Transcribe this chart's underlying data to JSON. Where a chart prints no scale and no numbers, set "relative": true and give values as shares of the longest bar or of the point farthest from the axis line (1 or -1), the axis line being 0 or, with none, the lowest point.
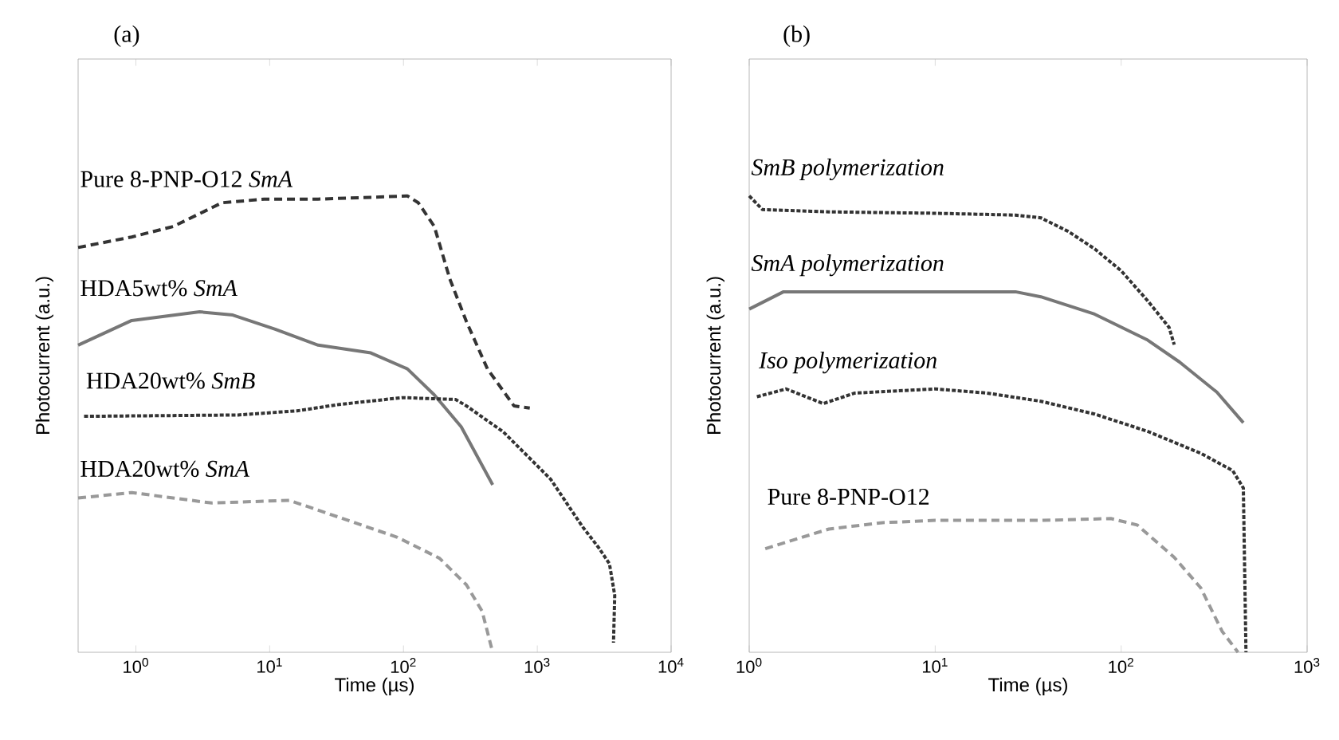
{
  "chart_data": [
    {
      "type": "line",
      "title": "(a)",
      "xlabel": "Time (µs)",
      "ylabel": "Photocurrent (a.u.)",
      "log": "x",
      "relative": true,
      "marker": "none",
      "xlim": [
        0.37,
        10000
      ],
      "xticks": [
        {
          "value": 1,
          "label": "10$^{0}$"
        },
        {
          "value": 10,
          "label": "10$^{1}$"
        },
        {
          "value": 100,
          "label": "10$^{2}$"
        },
        {
          "value": 1000,
          "label": "10$^{3}$"
        },
        {
          "value": 10000,
          "label": "10$^{4}$"
        }
      ],
      "series": [
        {
          "name": "Pure 8-PNP-O12 *SmA*",
          "color": "#333333",
          "line_style": "dashed",
          "x": [
            0.37,
            0.93,
            1.9,
            4.4,
            9.1,
            23,
            57,
            107,
            129,
            170,
            222,
            295,
            424,
            669,
            879
          ],
          "values": [
            0.887,
            0.91,
            0.933,
            0.985,
            0.993,
            0.993,
            0.997,
            1.0,
            0.985,
            0.933,
            0.818,
            0.725,
            0.621,
            0.54,
            0.535
          ]
        },
        {
          "name": "HDA5wt%  *SmA*",
          "color": "#777777",
          "line_style": "solid",
          "x": [
            0.37,
            0.93,
            3.0,
            5.3,
            11,
            23,
            57,
            107,
            170,
            270,
            464
          ],
          "values": [
            0.673,
            0.727,
            0.746,
            0.739,
            0.708,
            0.673,
            0.656,
            0.621,
            0.564,
            0.494,
            0.367
          ]
        },
        {
          "name": "HDA20wt%  *SmB*",
          "color": "#333333",
          "line_style": "dotted",
          "x": [
            0.41,
            5.8,
            16,
            33,
            98,
            245,
            295,
            557,
            879,
            1260,
            1820,
            2180,
            2880,
            3460,
            3790,
            3710
          ],
          "values": [
            0.517,
            0.52,
            0.529,
            0.543,
            0.558,
            0.554,
            0.54,
            0.483,
            0.425,
            0.379,
            0.309,
            0.275,
            0.229,
            0.194,
            0.125,
            0.021
          ]
        },
        {
          "name": "HDA20wt%  *SmA*",
          "color": "#999999",
          "line_style": "dashed",
          "x": [
            0.37,
            0.93,
            3.7,
            14,
            36,
            90,
            186,
            295,
            387,
            464
          ],
          "values": [
            0.338,
            0.35,
            0.327,
            0.333,
            0.292,
            0.252,
            0.206,
            0.148,
            0.09,
            0
          ]
        }
      ]
    },
    {
      "type": "line",
      "title": "(b)",
      "xlabel": "Time (µs)",
      "ylabel": "Photocurrent (a.u.)",
      "log": "x",
      "relative": true,
      "marker": "none",
      "xlim": [
        1,
        1000
      ],
      "xticks": [
        {
          "value": 1,
          "label": "10$^{0}$"
        },
        {
          "value": 10,
          "label": "10$^{1}$"
        },
        {
          "value": 100,
          "label": "10$^{2}$"
        },
        {
          "value": 1000,
          "label": "10$^{3}$"
        }
      ],
      "series": [
        {
          "name": "*SmB polymerization*",
          "color": "#333333",
          "line_style": "dotted",
          "x": [
            1,
            1.18,
            2.68,
            10,
            27,
            37,
            52,
            72,
            100,
            139,
            181,
            193
          ],
          "values": [
            1.0,
            0.97,
            0.965,
            0.962,
            0.958,
            0.952,
            0.922,
            0.884,
            0.836,
            0.77,
            0.712,
            0.674
          ]
        },
        {
          "name": "*SmA polymerization*",
          "color": "#777777",
          "line_style": "solid",
          "x": [
            1,
            1.53,
            5.2,
            27,
            37,
            72,
            139,
            206,
            327,
            454
          ],
          "values": [
            0.752,
            0.79,
            0.79,
            0.79,
            0.779,
            0.741,
            0.684,
            0.636,
            0.57,
            0.503
          ]
        },
        {
          "name": "*Iso polymerization*",
          "color": "#333333",
          "line_style": "dotted",
          "x": [
            1.1,
            1.58,
            2.5,
            3.7,
            10,
            19,
            37,
            72,
            139,
            268,
            398,
            454,
            469
          ],
          "values": [
            0.56,
            0.577,
            0.545,
            0.568,
            0.577,
            0.568,
            0.55,
            0.522,
            0.484,
            0.436,
            0.398,
            0.36,
            0
          ]
        },
        {
          "name": "Pure 8-PNP-O12",
          "color": "#999999",
          "line_style": "dashed",
          "x": [
            1.22,
            2.68,
            5.2,
            10,
            37,
            88,
            122,
            193,
            268,
            349,
            425
          ],
          "values": [
            0.227,
            0.27,
            0.284,
            0.289,
            0.289,
            0.293,
            0.279,
            0.208,
            0.141,
            0.046,
            0
          ]
        }
      ]
    }
  ]
}
